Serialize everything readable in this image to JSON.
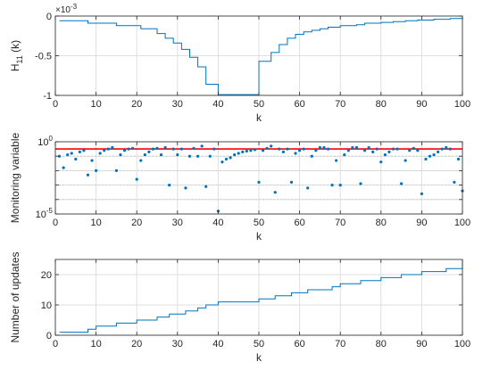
{
  "chart_data": [
    {
      "type": "line",
      "xlabel": "k",
      "ylabel": "H",
      "ylabel_sub": "11",
      "ylabel_suffix": "(k)",
      "exponent_label": "×10",
      "exponent_power": "-3",
      "xlim": [
        0,
        100
      ],
      "ylim": [
        -1,
        0
      ],
      "grid": true,
      "xticks": [
        0,
        10,
        20,
        30,
        40,
        50,
        60,
        70,
        80,
        90,
        100
      ],
      "yticks": [
        -1,
        -0.5,
        0
      ],
      "ytick_labels": [
        "-1",
        "-0.5",
        "0"
      ],
      "series_color": "#0072bd",
      "series": [
        {
          "x": [
            1,
            2,
            3,
            4,
            5,
            6,
            7,
            8,
            9,
            10,
            11,
            12,
            13,
            14,
            15,
            16,
            17,
            18,
            19,
            20,
            21,
            22,
            23,
            24,
            25,
            26,
            27,
            28,
            29,
            30,
            31,
            32,
            33,
            34,
            35,
            36,
            37,
            38,
            39,
            40,
            41,
            42,
            43,
            44,
            45,
            46,
            47,
            48,
            49,
            50,
            51,
            52,
            53,
            54,
            55,
            56,
            57,
            58,
            59,
            60,
            61,
            62,
            63,
            64,
            65,
            66,
            67,
            68,
            69,
            70,
            71,
            72,
            73,
            74,
            75,
            76,
            77,
            78,
            79,
            80,
            81,
            82,
            83,
            84,
            85,
            86,
            87,
            88,
            89,
            90,
            91,
            92,
            93,
            94,
            95,
            96,
            97,
            98,
            99,
            100
          ],
          "y": [
            -0.06,
            -0.06,
            -0.06,
            -0.06,
            -0.06,
            -0.06,
            -0.06,
            -0.09,
            -0.09,
            -0.09,
            -0.09,
            -0.09,
            -0.09,
            -0.09,
            -0.12,
            -0.12,
            -0.12,
            -0.12,
            -0.12,
            -0.12,
            -0.16,
            -0.16,
            -0.16,
            -0.16,
            -0.22,
            -0.22,
            -0.28,
            -0.28,
            -0.34,
            -0.34,
            -0.42,
            -0.42,
            -0.52,
            -0.52,
            -0.64,
            -0.64,
            -0.86,
            -0.86,
            -0.86,
            -0.99,
            -0.99,
            -0.99,
            -0.99,
            -0.99,
            -0.99,
            -0.99,
            -0.99,
            -0.99,
            -0.99,
            -0.57,
            -0.57,
            -0.57,
            -0.46,
            -0.46,
            -0.36,
            -0.36,
            -0.28,
            -0.28,
            -0.23,
            -0.23,
            -0.2,
            -0.2,
            -0.18,
            -0.18,
            -0.16,
            -0.16,
            -0.14,
            -0.14,
            -0.14,
            -0.12,
            -0.12,
            -0.12,
            -0.12,
            -0.11,
            -0.11,
            -0.09,
            -0.09,
            -0.09,
            -0.09,
            -0.08,
            -0.08,
            -0.08,
            -0.07,
            -0.07,
            -0.07,
            -0.06,
            -0.06,
            -0.06,
            -0.05,
            -0.05,
            -0.05,
            -0.05,
            -0.04,
            -0.04,
            -0.04,
            -0.04,
            -0.03,
            -0.03,
            -0.03,
            -0.03
          ]
        }
      ]
    },
    {
      "type": "scatter",
      "xlabel": "k",
      "ylabel": "Monitoring variable",
      "xlim": [
        0,
        100
      ],
      "ylim": [
        -5,
        0
      ],
      "yscale": "log",
      "grid": true,
      "xticks": [
        0,
        10,
        20,
        30,
        40,
        50,
        60,
        70,
        80,
        90,
        100
      ],
      "yticks": [
        -5,
        -4,
        -3,
        -2,
        -1,
        0
      ],
      "ytick_label_base": "10",
      "ytick_label_powers": [
        {
          "value": -5,
          "power": "-5"
        },
        {
          "value": 0,
          "power": "0"
        }
      ],
      "minor_gridline_exponents": [
        -4,
        -3,
        -2,
        -1
      ],
      "threshold_log10": -0.5,
      "threshold_color": "#ff0000",
      "series_color": "#0072bd",
      "series": [
        {
          "x": [
            1,
            2,
            3,
            4,
            5,
            6,
            7,
            8,
            9,
            10,
            11,
            12,
            13,
            14,
            15,
            16,
            17,
            18,
            19,
            20,
            21,
            22,
            23,
            24,
            25,
            26,
            27,
            28,
            29,
            30,
            31,
            32,
            33,
            34,
            35,
            36,
            37,
            38,
            39,
            40,
            41,
            42,
            43,
            44,
            45,
            46,
            47,
            48,
            49,
            50,
            51,
            52,
            53,
            54,
            55,
            56,
            57,
            58,
            59,
            60,
            61,
            62,
            63,
            64,
            65,
            66,
            67,
            68,
            69,
            70,
            71,
            72,
            73,
            74,
            75,
            76,
            77,
            78,
            79,
            80,
            81,
            82,
            83,
            84,
            85,
            86,
            87,
            88,
            89,
            90,
            91,
            92,
            93,
            94,
            95,
            96,
            97,
            98,
            99,
            100
          ],
          "log10y": [
            -1.0,
            -1.8,
            -0.9,
            -0.8,
            -1.2,
            -0.7,
            -0.6,
            -2.3,
            -1.3,
            -2.0,
            -0.8,
            -0.6,
            -0.5,
            -0.4,
            -2.0,
            -0.9,
            -0.6,
            -0.5,
            -0.45,
            -2.6,
            -1.3,
            -0.9,
            -0.7,
            -0.5,
            -0.45,
            -0.9,
            -0.4,
            -3.0,
            -0.5,
            -0.9,
            -0.5,
            -3.2,
            -1.0,
            -0.45,
            -1.0,
            -0.3,
            -3.1,
            -1.0,
            -0.5,
            -4.8,
            -1.4,
            -1.2,
            -1.1,
            -0.9,
            -0.8,
            -0.7,
            -0.65,
            -0.6,
            -0.55,
            -2.8,
            -0.6,
            -0.45,
            -0.3,
            -3.5,
            -0.5,
            -0.7,
            -0.5,
            -2.8,
            -0.8,
            -0.6,
            -0.5,
            -3.2,
            -1.0,
            -0.6,
            -0.4,
            -0.4,
            -0.5,
            -3.0,
            -1.3,
            -3.0,
            -0.9,
            -0.6,
            -0.4,
            -0.4,
            -2.9,
            -0.6,
            -0.4,
            -0.7,
            -0.5,
            -1.4,
            -0.9,
            -0.7,
            -0.5,
            -0.5,
            -2.9,
            -1.3,
            -0.6,
            -0.45,
            -0.6,
            -3.6,
            -1.2,
            -1.0,
            -0.9,
            -0.7,
            -0.5,
            -0.4,
            -0.5,
            -2.8,
            -1.2,
            -3.4
          ]
        }
      ]
    },
    {
      "type": "line",
      "xlabel": "k",
      "ylabel": "Number of updates",
      "xlim": [
        0,
        100
      ],
      "ylim": [
        0,
        25
      ],
      "grid": true,
      "xticks": [
        0,
        10,
        20,
        30,
        40,
        50,
        60,
        70,
        80,
        90,
        100
      ],
      "yticks": [
        0,
        10,
        20
      ],
      "series_color": "#0072bd",
      "series": [
        {
          "x": [
            1,
            2,
            3,
            4,
            5,
            6,
            7,
            8,
            9,
            10,
            11,
            12,
            13,
            14,
            15,
            16,
            17,
            18,
            19,
            20,
            21,
            22,
            23,
            24,
            25,
            26,
            27,
            28,
            29,
            30,
            31,
            32,
            33,
            34,
            35,
            36,
            37,
            38,
            39,
            40,
            41,
            42,
            43,
            44,
            45,
            46,
            47,
            48,
            49,
            50,
            51,
            52,
            53,
            54,
            55,
            56,
            57,
            58,
            59,
            60,
            61,
            62,
            63,
            64,
            65,
            66,
            67,
            68,
            69,
            70,
            71,
            72,
            73,
            74,
            75,
            76,
            77,
            78,
            79,
            80,
            81,
            82,
            83,
            84,
            85,
            86,
            87,
            88,
            89,
            90,
            91,
            92,
            93,
            94,
            95,
            96,
            97,
            98,
            99,
            100
          ],
          "y": [
            1,
            1,
            1,
            1,
            1,
            1,
            1,
            2,
            2,
            3,
            3,
            3,
            3,
            3,
            4,
            4,
            4,
            4,
            4,
            5,
            5,
            5,
            5,
            5,
            6,
            6,
            6,
            7,
            7,
            7,
            7,
            8,
            8,
            8,
            9,
            9,
            10,
            10,
            10,
            11,
            11,
            11,
            11,
            11,
            11,
            11,
            11,
            11,
            11,
            12,
            12,
            12,
            12,
            13,
            13,
            13,
            13,
            14,
            14,
            14,
            14,
            15,
            15,
            15,
            15,
            15,
            15,
            16,
            16,
            17,
            17,
            17,
            17,
            17,
            18,
            18,
            18,
            18,
            18,
            19,
            19,
            19,
            19,
            19,
            20,
            20,
            20,
            20,
            20,
            21,
            21,
            21,
            21,
            21,
            21,
            22,
            22,
            22,
            22,
            24
          ]
        }
      ]
    }
  ]
}
